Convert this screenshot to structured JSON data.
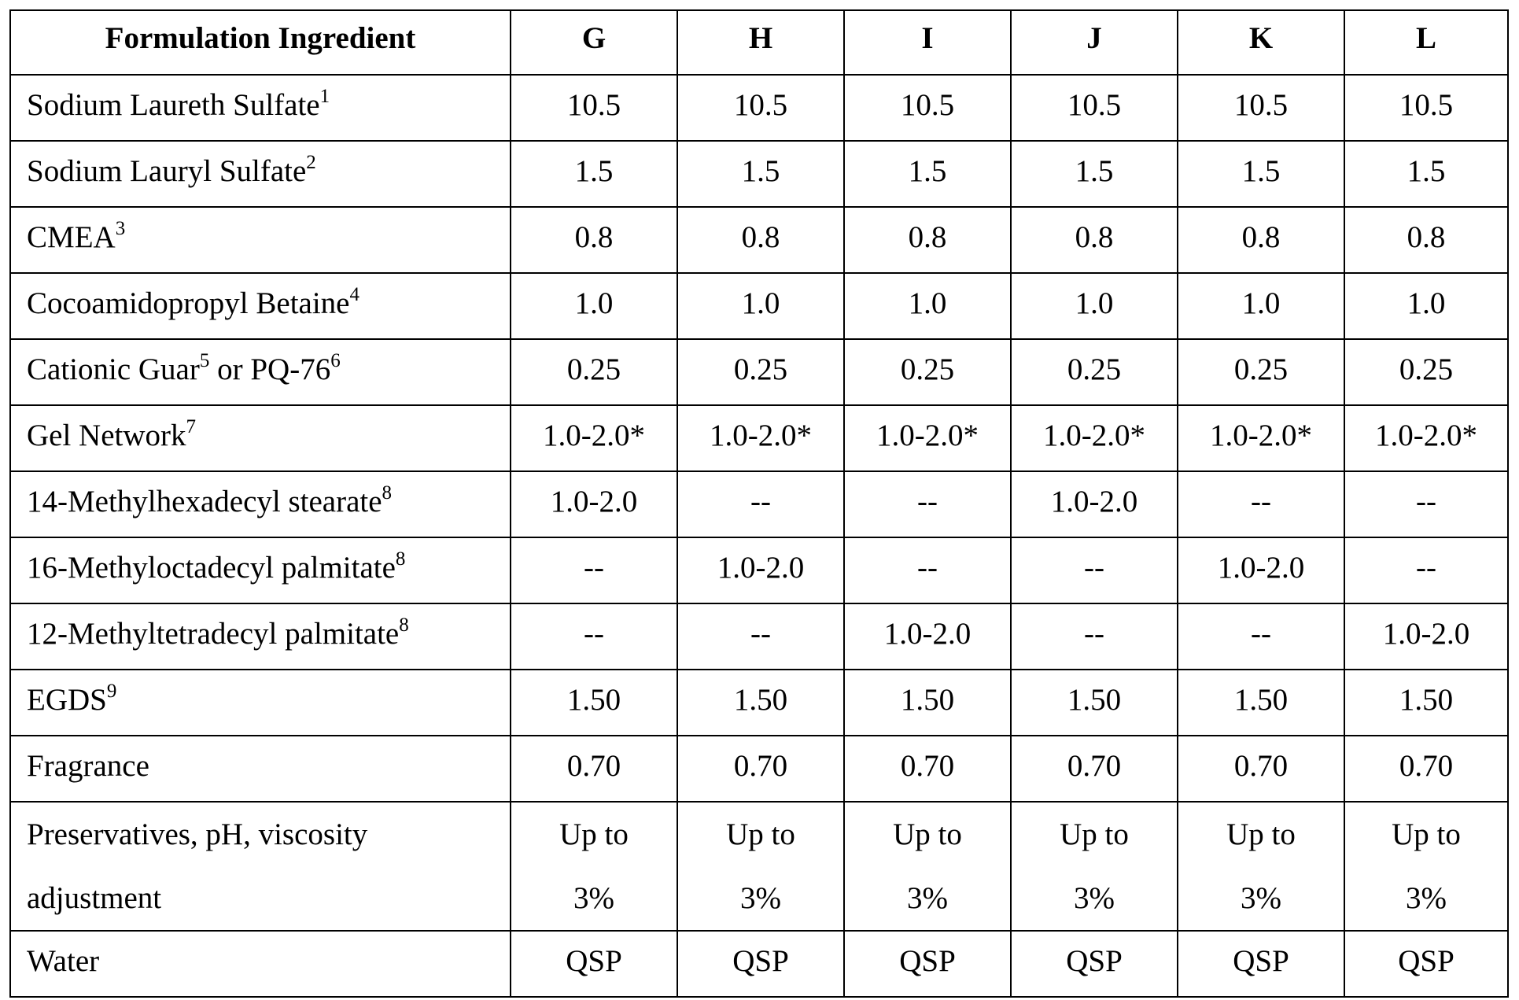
{
  "table": {
    "header": [
      "Formulation Ingredient",
      "G",
      "H",
      "I",
      "J",
      "K",
      "L"
    ],
    "rows": [
      {
        "label": [
          {
            "text": "Sodium Laureth Sulfate",
            "sup": "1"
          }
        ],
        "values": [
          "10.5",
          "10.5",
          "10.5",
          "10.5",
          "10.5",
          "10.5"
        ]
      },
      {
        "label": [
          {
            "text": "Sodium Lauryl Sulfate",
            "sup": "2"
          }
        ],
        "values": [
          "1.5",
          "1.5",
          "1.5",
          "1.5",
          "1.5",
          "1.5"
        ]
      },
      {
        "label": [
          {
            "text": "CMEA",
            "sup": "3"
          }
        ],
        "values": [
          "0.8",
          "0.8",
          "0.8",
          "0.8",
          "0.8",
          "0.8"
        ]
      },
      {
        "label": [
          {
            "text": "Cocoamidopropyl Betaine",
            "sup": "4"
          }
        ],
        "values": [
          "1.0",
          "1.0",
          "1.0",
          "1.0",
          "1.0",
          "1.0"
        ]
      },
      {
        "label": [
          {
            "text": "Cationic Guar",
            "sup": "5"
          },
          {
            "text": " or PQ-76",
            "sup": "6"
          }
        ],
        "values": [
          "0.25",
          "0.25",
          "0.25",
          "0.25",
          "0.25",
          "0.25"
        ]
      },
      {
        "label": [
          {
            "text": "Gel Network",
            "sup": "7"
          }
        ],
        "values": [
          "1.0-2.0*",
          "1.0-2.0*",
          "1.0-2.0*",
          "1.0-2.0*",
          "1.0-2.0*",
          "1.0-2.0*"
        ]
      },
      {
        "label": [
          {
            "text": "14-Methylhexadecyl stearate",
            "sup": "8"
          }
        ],
        "values": [
          "1.0-2.0",
          "--",
          "--",
          "1.0-2.0",
          "--",
          "--"
        ]
      },
      {
        "label": [
          {
            "text": "16-Methyloctadecyl palmitate",
            "sup": "8"
          }
        ],
        "values": [
          "--",
          "1.0-2.0",
          "--",
          "--",
          "1.0-2.0",
          "--"
        ]
      },
      {
        "label": [
          {
            "text": "12-Methyltetradecyl palmitate",
            "sup": "8"
          }
        ],
        "values": [
          "--",
          "--",
          "1.0-2.0",
          "--",
          "--",
          "1.0-2.0"
        ]
      },
      {
        "label": [
          {
            "text": "EGDS",
            "sup": "9"
          }
        ],
        "values": [
          "1.50",
          "1.50",
          "1.50",
          "1.50",
          "1.50",
          "1.50"
        ]
      },
      {
        "label": [
          {
            "text": "Fragrance"
          }
        ],
        "values": [
          "0.70",
          "0.70",
          "0.70",
          "0.70",
          "0.70",
          "0.70"
        ]
      },
      {
        "label": [
          {
            "text": "Preservatives, pH, viscosity"
          },
          {
            "text": "adjustment"
          }
        ],
        "multiline": true,
        "values": [
          [
            "Up to",
            "3%"
          ],
          [
            "Up to",
            "3%"
          ],
          [
            "Up to",
            "3%"
          ],
          [
            "Up to",
            "3%"
          ],
          [
            "Up to",
            "3%"
          ],
          [
            "Up to",
            "3%"
          ]
        ]
      },
      {
        "label": [
          {
            "text": "Water"
          }
        ],
        "values": [
          "QSP",
          "QSP",
          "QSP",
          "QSP",
          "QSP",
          "QSP"
        ]
      }
    ]
  }
}
